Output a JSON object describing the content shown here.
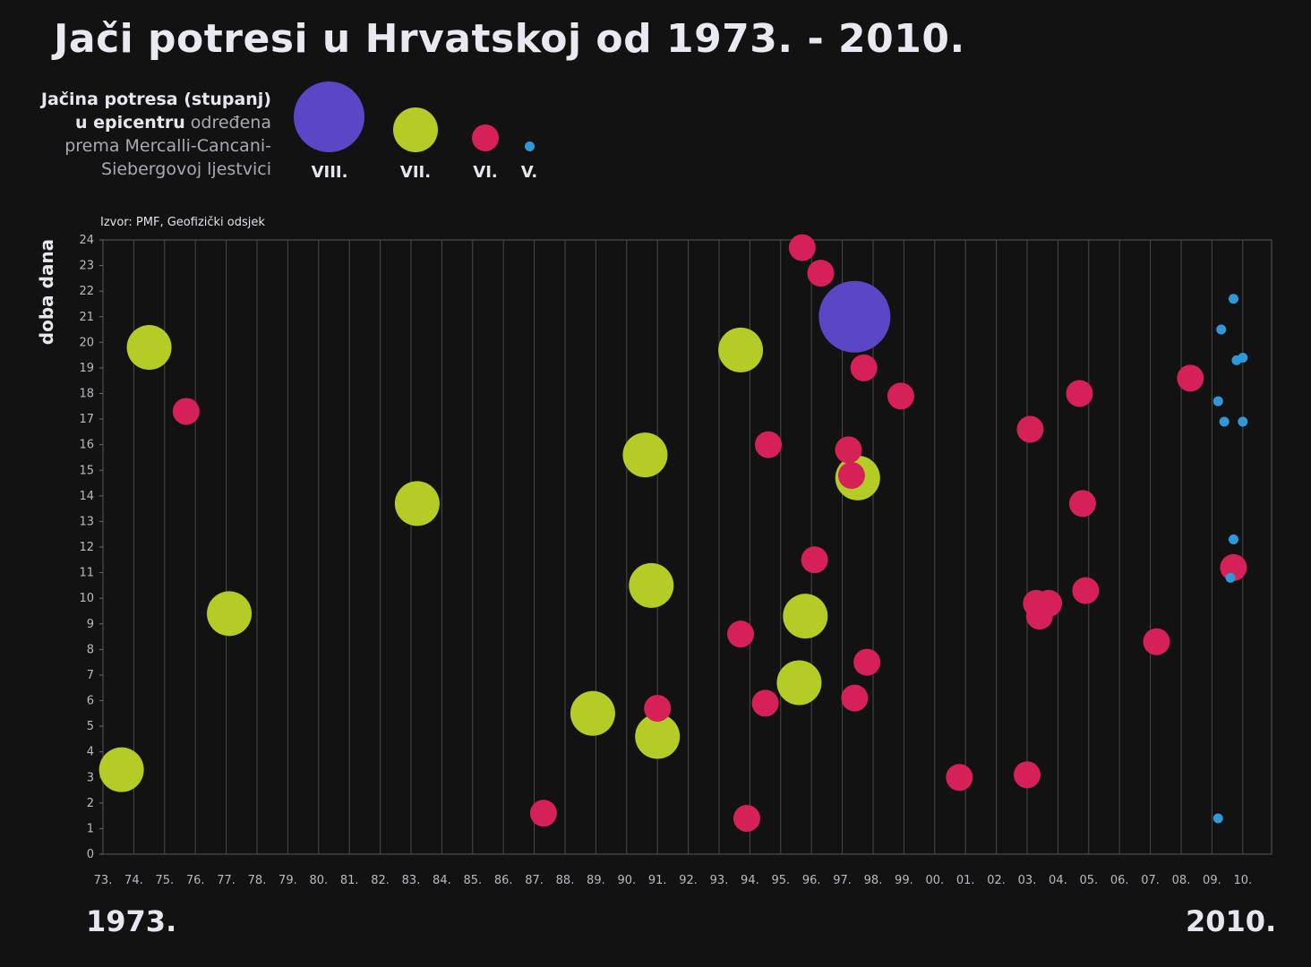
{
  "title": "Jači potresi u Hrvatskoj od 1973. - 2010.",
  "legend": {
    "text_bold_1": "Jačina potresa (stupanj)",
    "text_bold_2": "u epicentru",
    "text_light_1": "određena",
    "text_light_2": "prema Mercalli-Cancani-",
    "text_light_3": "Siebergovoj ljestvici",
    "items": [
      {
        "label": "VIII.",
        "color": "#5b47c6"
      },
      {
        "label": "VII.",
        "color": "#b5cc27"
      },
      {
        "label": "VI.",
        "color": "#d62158"
      },
      {
        "label": "V.",
        "color": "#2e98d9"
      }
    ]
  },
  "source": "Izvor: PMF, Geofizički odsjek",
  "year_start": "1973.",
  "year_end": "2010.",
  "chart_data": {
    "type": "scatter",
    "ylabel": "doba dana",
    "xlabel": "",
    "xlim": [
      1973,
      2011
    ],
    "ylim": [
      0,
      24
    ],
    "grid": true,
    "x_tick_labels": [
      "73.",
      "74.",
      "75.",
      "76.",
      "77.",
      "78.",
      "79.",
      "80.",
      "81.",
      "82.",
      "83.",
      "84.",
      "85.",
      "86.",
      "87.",
      "88.",
      "89.",
      "90.",
      "91.",
      "92.",
      "93.",
      "94.",
      "95.",
      "96.",
      "97.",
      "98.",
      "99.",
      "00.",
      "01.",
      "02.",
      "03.",
      "04.",
      "05.",
      "06.",
      "07.",
      "08.",
      "09.",
      "10."
    ],
    "y_ticks": [
      0,
      1,
      2,
      3,
      4,
      5,
      6,
      7,
      8,
      9,
      10,
      11,
      12,
      13,
      14,
      15,
      16,
      17,
      18,
      19,
      20,
      21,
      22,
      23,
      24
    ],
    "series": [
      {
        "name": "VIII.",
        "color": "#5b47c6",
        "points": [
          [
            1997.4,
            21.0
          ]
        ]
      },
      {
        "name": "VII.",
        "color": "#b5cc27",
        "points": [
          [
            1973.6,
            3.3
          ],
          [
            1974.5,
            19.8
          ],
          [
            1977.1,
            9.4
          ],
          [
            1983.2,
            13.7
          ],
          [
            1988.9,
            5.5
          ],
          [
            1990.6,
            15.6
          ],
          [
            1990.8,
            10.5
          ],
          [
            1991.0,
            4.6
          ],
          [
            1993.7,
            19.7
          ],
          [
            1995.6,
            6.7
          ],
          [
            1995.8,
            9.3
          ],
          [
            1997.5,
            14.7
          ]
        ]
      },
      {
        "name": "VI.",
        "color": "#d62158",
        "points": [
          [
            1975.7,
            17.3
          ],
          [
            1987.3,
            1.6
          ],
          [
            1991.0,
            5.7
          ],
          [
            1993.7,
            8.6
          ],
          [
            1993.9,
            1.4
          ],
          [
            1994.5,
            5.9
          ],
          [
            1994.6,
            16.0
          ],
          [
            1995.7,
            23.7
          ],
          [
            1996.1,
            11.5
          ],
          [
            1996.3,
            22.7
          ],
          [
            1997.2,
            15.8
          ],
          [
            1997.3,
            14.8
          ],
          [
            1997.4,
            6.1
          ],
          [
            1997.7,
            19.0
          ],
          [
            1997.8,
            7.5
          ],
          [
            1998.9,
            17.9
          ],
          [
            2000.8,
            3.0
          ],
          [
            2003.0,
            3.1
          ],
          [
            2003.1,
            16.6
          ],
          [
            2003.3,
            9.8
          ],
          [
            2003.4,
            9.3
          ],
          [
            2003.7,
            9.8
          ],
          [
            2004.7,
            18.0
          ],
          [
            2004.8,
            13.7
          ],
          [
            2004.9,
            10.3
          ],
          [
            2007.2,
            8.3
          ],
          [
            2008.3,
            18.6
          ],
          [
            2009.7,
            11.2
          ]
        ]
      },
      {
        "name": "V.",
        "color": "#2e98d9",
        "points": [
          [
            2009.2,
            1.4
          ],
          [
            2009.2,
            17.7
          ],
          [
            2009.3,
            20.5
          ],
          [
            2009.4,
            16.9
          ],
          [
            2009.6,
            10.8
          ],
          [
            2009.7,
            12.3
          ],
          [
            2009.7,
            21.7
          ],
          [
            2009.8,
            19.3
          ],
          [
            2010.0,
            19.4
          ],
          [
            2010.0,
            16.9
          ]
        ]
      }
    ]
  }
}
